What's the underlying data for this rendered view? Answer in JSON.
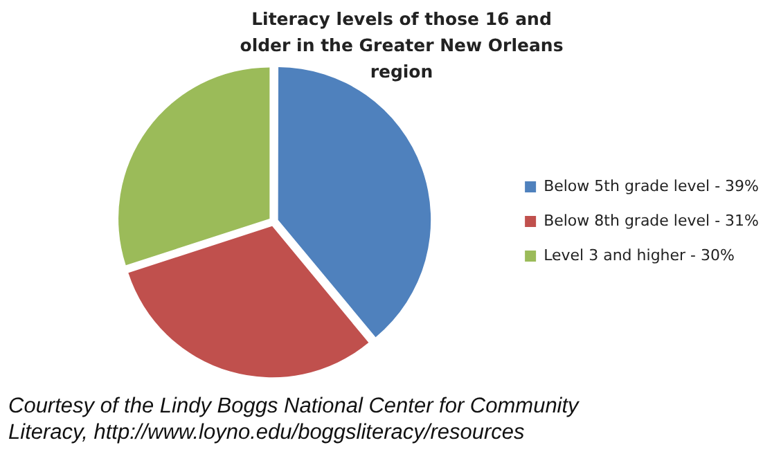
{
  "chart_data": {
    "type": "pie",
    "title": "Literacy levels of those 16 and older in the Greater New Orleans region",
    "categories": [
      "Below 5th grade level - 39%",
      "Below 8th grade level - 31%",
      "Level 3 and higher - 30%"
    ],
    "values": [
      39,
      31,
      30
    ],
    "colors": [
      "#4f81bd",
      "#c0504d",
      "#9bbb59"
    ],
    "legend": "right",
    "annotations": [
      "Courtesy of the Lindy Boggs National Center for Community Literacy, http://www.loyno.edu/boggsliteracy/resources"
    ]
  }
}
